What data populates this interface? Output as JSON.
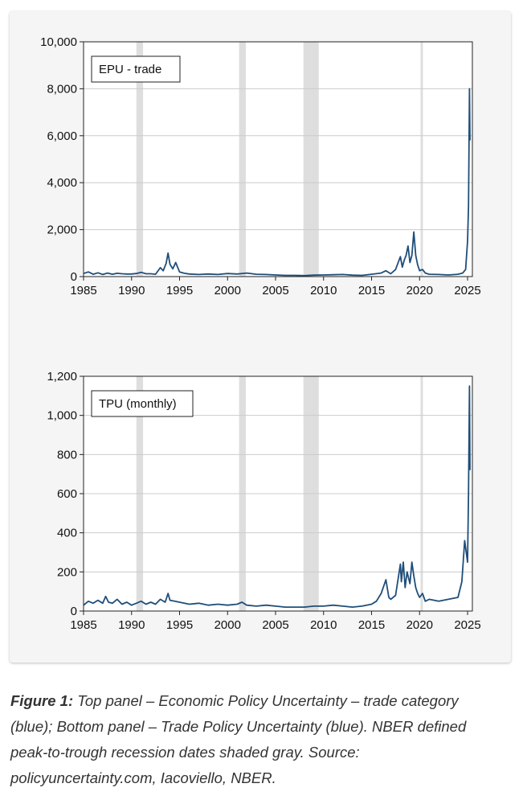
{
  "colors": {
    "series": "#1f4e79",
    "recession": "#dedede",
    "background": "#f5f5f5",
    "grid": "#cccccc"
  },
  "caption": {
    "label": "Figure 1:",
    "text": " Top panel – Economic Policy Uncertainty – trade category (blue); Bottom panel – Trade Policy Uncertainty (blue). NBER defined peak-to-trough recession dates shaded gray. Source: policyuncertainty.com, Iacoviello, NBER."
  },
  "chart_data": [
    {
      "type": "line",
      "legend": "EPU - trade",
      "legend_position": "top-left",
      "xlim": [
        1985,
        2025.5
      ],
      "x_ticks": [
        1985,
        1990,
        1995,
        2000,
        2005,
        2010,
        2015,
        2020,
        2025
      ],
      "x_tick_labels": [
        "1985",
        "1990",
        "1995",
        "2000",
        "2005",
        "2010",
        "2015",
        "2020",
        "2025"
      ],
      "ylim": [
        0,
        10000
      ],
      "y_ticks": [
        0,
        2000,
        4000,
        6000,
        8000,
        10000
      ],
      "y_tick_labels": [
        "0",
        "2,000",
        "4,000",
        "6,000",
        "8,000",
        "10,000"
      ],
      "grid": "horizontal",
      "recessions": [
        [
          1990.5,
          1991.2
        ],
        [
          2001.2,
          2001.9
        ],
        [
          2007.9,
          2009.5
        ],
        [
          2020.1,
          2020.3
        ]
      ],
      "series": [
        {
          "x": [
            1985,
            1985.5,
            1986,
            1986.5,
            1987,
            1987.5,
            1988,
            1988.5,
            1989,
            1989.5,
            1990,
            1990.5,
            1991,
            1991.5,
            1992,
            1992.5,
            1993,
            1993.3,
            1993.6,
            1993.8,
            1994,
            1994.3,
            1994.6,
            1995,
            1995.5,
            1996,
            1997,
            1998,
            1999,
            2000,
            2001,
            2002,
            2003,
            2004,
            2005,
            2006,
            2007,
            2008,
            2009,
            2010,
            2011,
            2012,
            2013,
            2014,
            2015,
            2016,
            2016.5,
            2017,
            2017.5,
            2018,
            2018.2,
            2018.4,
            2018.6,
            2018.8,
            2019,
            2019.2,
            2019.4,
            2019.6,
            2019.8,
            2020,
            2020.3,
            2020.6,
            2021,
            2022,
            2023,
            2024,
            2024.5,
            2024.8,
            2025,
            2025.1,
            2025.2,
            2025.25
          ],
          "y": [
            130,
            200,
            100,
            160,
            90,
            150,
            100,
            140,
            120,
            110,
            110,
            130,
            180,
            120,
            120,
            100,
            380,
            250,
            560,
            1000,
            520,
            330,
            600,
            200,
            140,
            110,
            90,
            110,
            90,
            130,
            110,
            150,
            100,
            90,
            70,
            50,
            50,
            40,
            60,
            70,
            80,
            90,
            60,
            50,
            100,
            150,
            250,
            120,
            300,
            850,
            400,
            700,
            900,
            1300,
            600,
            900,
            1900,
            900,
            500,
            250,
            300,
            150,
            100,
            90,
            70,
            100,
            150,
            300,
            1500,
            3000,
            8000,
            5800
          ]
        }
      ]
    },
    {
      "type": "line",
      "legend": "TPU (monthly)",
      "legend_position": "top-left",
      "xlim": [
        1985,
        2025.5
      ],
      "x_ticks": [
        1985,
        1990,
        1995,
        2000,
        2005,
        2010,
        2015,
        2020,
        2025
      ],
      "x_tick_labels": [
        "1985",
        "1990",
        "1995",
        "2000",
        "2005",
        "2010",
        "2015",
        "2020",
        "2025"
      ],
      "ylim": [
        0,
        1200
      ],
      "y_ticks": [
        0,
        200,
        400,
        600,
        800,
        1000,
        1200
      ],
      "y_tick_labels": [
        "0",
        "200",
        "400",
        "600",
        "800",
        "1,000",
        "1,200"
      ],
      "grid": "horizontal",
      "recessions": [
        [
          1990.5,
          1991.2
        ],
        [
          2001.2,
          2001.9
        ],
        [
          2007.9,
          2009.5
        ],
        [
          2020.1,
          2020.3
        ]
      ],
      "series": [
        {
          "x": [
            1985,
            1985.5,
            1986,
            1986.5,
            1987,
            1987.3,
            1987.6,
            1988,
            1988.5,
            1989,
            1989.5,
            1990,
            1990.5,
            1991,
            1991.5,
            1992,
            1992.5,
            1993,
            1993.5,
            1993.8,
            1994,
            1994.5,
            1995,
            1995.5,
            1996,
            1997,
            1998,
            1999,
            2000,
            2001,
            2001.5,
            2002,
            2003,
            2004,
            2005,
            2006,
            2007,
            2008,
            2009,
            2010,
            2011,
            2012,
            2013,
            2014,
            2015,
            2015.5,
            2016,
            2016.5,
            2016.8,
            2017,
            2017.5,
            2018,
            2018.1,
            2018.3,
            2018.5,
            2018.7,
            2019,
            2019.2,
            2019.4,
            2019.6,
            2019.8,
            2020,
            2020.3,
            2020.6,
            2021,
            2022,
            2023,
            2024,
            2024.4,
            2024.7,
            2025,
            2025.1,
            2025.2,
            2025.25
          ],
          "y": [
            30,
            50,
            40,
            55,
            40,
            75,
            45,
            40,
            60,
            35,
            45,
            30,
            40,
            50,
            35,
            45,
            35,
            60,
            45,
            90,
            55,
            50,
            45,
            40,
            35,
            40,
            30,
            35,
            30,
            35,
            45,
            30,
            25,
            30,
            25,
            20,
            20,
            20,
            25,
            25,
            30,
            25,
            20,
            25,
            35,
            50,
            90,
            160,
            70,
            60,
            80,
            240,
            150,
            250,
            120,
            200,
            140,
            250,
            180,
            120,
            90,
            70,
            90,
            50,
            60,
            50,
            60,
            70,
            150,
            360,
            250,
            600,
            1150,
            720
          ]
        }
      ]
    }
  ]
}
